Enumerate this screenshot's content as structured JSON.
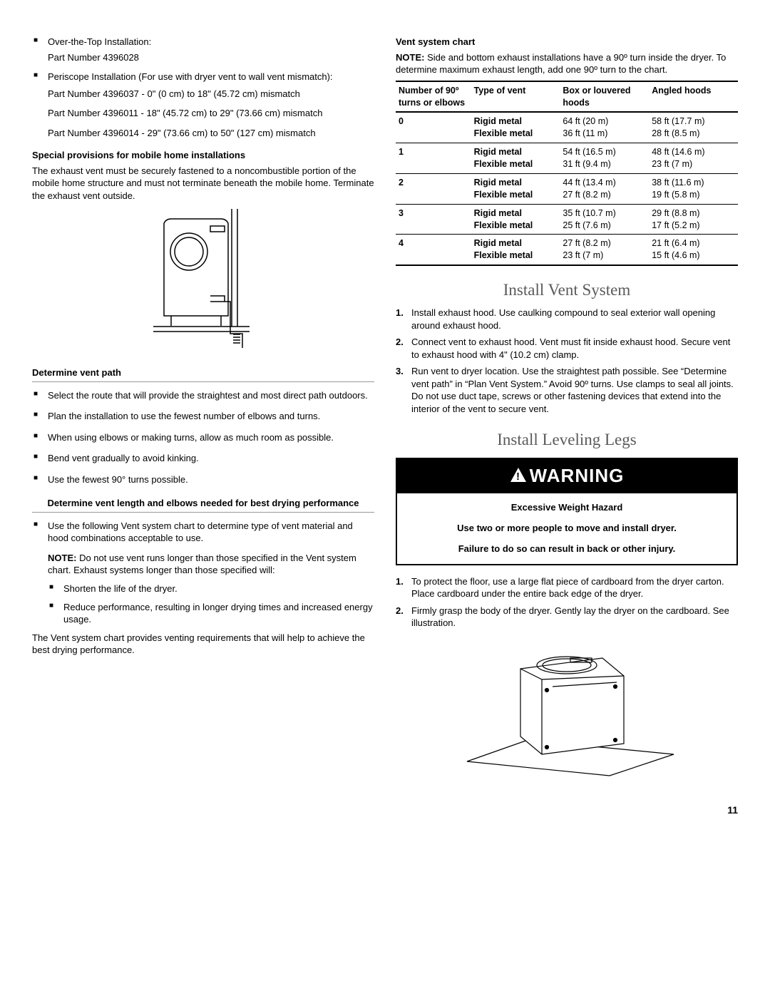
{
  "left": {
    "bullets_top": [
      {
        "text": "Over-the-Top Installation:",
        "sub": [
          "Part Number 4396028"
        ]
      },
      {
        "text": "Periscope Installation (For use with dryer vent to wall vent mismatch):",
        "sub": [
          "Part Number 4396037 - 0\" (0 cm)  to 18\" (45.72 cm) mismatch",
          "Part Number 4396011 - 18\" (45.72 cm) to 29\" (73.66 cm) mismatch",
          "Part Number 4396014 - 29\" (73.66 cm) to 50\" (127 cm) mismatch"
        ]
      }
    ],
    "mobile_head": "Special provisions for mobile home installations",
    "mobile_text": "The exhaust vent must be securely fastened to a noncombustible portion of the mobile home structure and must not terminate beneath the mobile home. Terminate the exhaust vent outside.",
    "determine_head": "Determine vent path",
    "determine_bullets": [
      "Select the route that will provide the straightest and most direct path outdoors.",
      "Plan the installation to use the fewest number of elbows and turns.",
      "When using elbows or making turns, allow as much room as possible.",
      "Bend vent gradually to avoid kinking.",
      "Use the fewest 90° turns possible."
    ],
    "length_head": "Determine vent length and elbows needed for best drying performance",
    "length_bullet": "Use the following Vent system chart to determine type of vent material and hood combinations acceptable to use.",
    "length_note": " Do not use vent runs longer than those specified in the Vent system chart. Exhaust systems longer than those specified will:",
    "length_note_label": "NOTE:",
    "length_sub": [
      "Shorten the life of the dryer.",
      "Reduce performance, resulting in longer drying times and increased energy usage."
    ],
    "length_tail": "The Vent system chart provides venting requirements that will help to achieve the best drying performance."
  },
  "right": {
    "chart_head": "Vent system chart",
    "chart_note_label": "NOTE:",
    "chart_note": " Side and bottom exhaust installations have a 90º turn inside the dryer. To determine maximum exhaust length, add one 90º turn to the chart.",
    "table": {
      "headers": [
        "Number of 90º turns or elbows",
        "Type of vent",
        "Box or louvered hoods",
        "Angled hoods"
      ],
      "rows": [
        {
          "n": "0",
          "t1": "Rigid metal",
          "b1": "64 ft (20 m)",
          "a1": "58 ft (17.7 m)",
          "t2": "Flexible metal",
          "b2": "36 ft (11 m)",
          "a2": "28 ft (8.5 m)"
        },
        {
          "n": "1",
          "t1": "Rigid metal",
          "b1": "54 ft (16.5 m)",
          "a1": "48 ft (14.6 m)",
          "t2": "Flexible metal",
          "b2": "31 ft (9.4 m)",
          "a2": "23 ft (7 m)"
        },
        {
          "n": "2",
          "t1": "Rigid metal",
          "b1": "44 ft (13.4 m)",
          "a1": "38 ft (11.6 m)",
          "t2": "Flexible metal",
          "b2": "27 ft (8.2 m)",
          "a2": "19 ft (5.8 m)"
        },
        {
          "n": "3",
          "t1": "Rigid metal",
          "b1": "35 ft (10.7 m)",
          "a1": "29 ft (8.8 m)",
          "t2": "Flexible metal",
          "b2": "25 ft (7.6 m)",
          "a2": "17 ft (5.2 m)"
        },
        {
          "n": "4",
          "t1": "Rigid metal",
          "b1": "27 ft (8.2 m)",
          "a1": "21 ft (6.4 m)",
          "t2": "Flexible metal",
          "b2": "23 ft (7 m)",
          "a2": "15 ft (4.6 m)"
        }
      ]
    },
    "install_vent_head": "Install Vent System",
    "install_vent_steps": [
      "Install exhaust hood. Use caulking compound to seal exterior wall opening around exhaust hood.",
      "Connect vent to exhaust hood. Vent must fit inside exhaust hood. Secure vent to exhaust hood with 4\" (10.2 cm) clamp.",
      "Run vent to dryer location. Use the straightest path possible. See “Determine vent path” in “Plan Vent System.” Avoid 90º turns. Use clamps to seal all joints. Do not use duct tape, screws or other fastening devices that extend into the interior of the vent to secure vent."
    ],
    "install_legs_head": "Install Leveling Legs",
    "warning_label": "WARNING",
    "warning_lines": [
      "Excessive Weight Hazard",
      "Use two or more people to move and install dryer.",
      "Failure to do so can result in back or other injury."
    ],
    "legs_steps": [
      "To protect the floor, use a large flat piece of cardboard from the dryer carton. Place cardboard under the entire back edge of the dryer.",
      "Firmly grasp the body of the dryer. Gently lay the dryer on the cardboard. See illustration."
    ]
  },
  "page_number": "11"
}
